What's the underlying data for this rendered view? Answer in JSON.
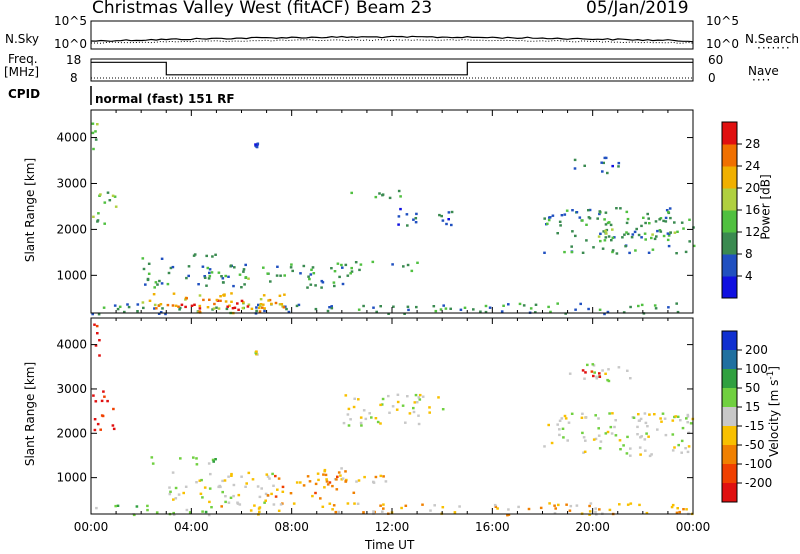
{
  "header": {
    "station": "Christmas Valley West (fitACF)",
    "beam": "Beam 23",
    "date": "05/Jan/2019"
  },
  "side_labels": {
    "nsky": "N.Sky",
    "nsearch": "N.Search",
    "freq_line1": "Freq.",
    "freq_line2": "[MHz]",
    "nave": "Nave",
    "cpid": "CPID"
  },
  "cpid_text": "normal (fast) 151 RF",
  "chart_data": [
    {
      "type": "line",
      "name": "noise",
      "left_axis": {
        "ticks": [
          "10^5",
          "10^0"
        ]
      },
      "right_axis": {
        "ticks": [
          "10^5",
          "10^0"
        ]
      },
      "series": [
        {
          "name": "N.Sky",
          "style": "solid"
        },
        {
          "name": "N.Search",
          "style": "dotted"
        }
      ]
    },
    {
      "type": "line",
      "name": "frequency",
      "left_axis": {
        "ticks": [
          18,
          8
        ]
      },
      "right_axis": {
        "ticks": [
          60,
          0
        ]
      },
      "series": [
        {
          "name": "Freq.",
          "style": "solid",
          "x": [
            0,
            3,
            3,
            15,
            15,
            24
          ],
          "y": [
            16.5,
            16.5,
            10.8,
            10.8,
            16.5,
            16.5
          ]
        },
        {
          "name": "Nave",
          "style": "dotted"
        }
      ]
    },
    {
      "type": "heatmap",
      "name": "power",
      "ylabel": "Slant Range [km]",
      "ylim": [
        180,
        4600
      ],
      "yticks": [
        1000,
        2000,
        3000,
        4000
      ],
      "colorbar": {
        "label": "Power [dB]",
        "ticks": [
          4,
          8,
          12,
          16,
          20,
          24,
          28
        ],
        "colors": [
          "#1010e0",
          "#2050c0",
          "#3a8a50",
          "#50c040",
          "#b0d040",
          "#f0b000",
          "#f07000",
          "#e01010"
        ]
      },
      "regions": [
        {
          "t0": 0.0,
          "t1": 1.0,
          "r0": 2100,
          "r1": 2900,
          "level": 3
        },
        {
          "t0": 0.0,
          "t1": 0.2,
          "r0": 3600,
          "r1": 4500,
          "level": 3
        },
        {
          "t0": 2.0,
          "t1": 5.0,
          "r0": 1380,
          "r1": 1520,
          "level": 2
        },
        {
          "t0": 2.0,
          "t1": 10.5,
          "r0": 750,
          "r1": 1300,
          "level": 2
        },
        {
          "t0": 4.0,
          "t1": 7.0,
          "r0": 950,
          "r1": 1100,
          "level": 3
        },
        {
          "t0": 9.5,
          "t1": 13.0,
          "r0": 1120,
          "r1": 1320,
          "level": 2
        },
        {
          "t0": 10.0,
          "t1": 12.5,
          "r0": 2700,
          "r1": 2880,
          "level": 2
        },
        {
          "t0": 12.0,
          "t1": 14.5,
          "r0": 2100,
          "r1": 2500,
          "level": 1
        },
        {
          "t0": 0.0,
          "t1": 24.0,
          "r0": 180,
          "r1": 420,
          "level": 2
        },
        {
          "t0": 2.0,
          "t1": 8.0,
          "r0": 200,
          "r1": 650,
          "level": 5
        },
        {
          "t0": 4.0,
          "t1": 7.5,
          "r0": 200,
          "r1": 500,
          "level": 6
        },
        {
          "t0": 3.0,
          "t1": 7.0,
          "r0": 300,
          "r1": 450,
          "level": 7
        },
        {
          "t0": 18.0,
          "t1": 24.0,
          "r0": 1500,
          "r1": 2500,
          "level": 2
        },
        {
          "t0": 20.0,
          "t1": 23.5,
          "r0": 1800,
          "r1": 2300,
          "level": 3
        },
        {
          "t0": 19.0,
          "t1": 21.0,
          "r0": 3250,
          "r1": 3600,
          "level": 1
        },
        {
          "t0": 6.5,
          "t1": 6.6,
          "r0": 3800,
          "r1": 3900,
          "level": 1
        }
      ]
    },
    {
      "type": "heatmap",
      "name": "velocity",
      "xlabel": "Time UT",
      "ylabel": "Slant Range [km]",
      "xlim": [
        0,
        24
      ],
      "xticks": [
        "00:00",
        "04:00",
        "08:00",
        "12:00",
        "16:00",
        "20:00",
        "00:00"
      ],
      "ylim": [
        180,
        4600
      ],
      "yticks": [
        1000,
        2000,
        3000,
        4000
      ],
      "colorbar": {
        "label": "Velocity [m s",
        "label_sup": "-1",
        "label_end": "]",
        "ticks": [
          200,
          100,
          50,
          15,
          -15,
          -50,
          -100,
          -200
        ],
        "colors": [
          "#1030d0",
          "#2070a0",
          "#30a040",
          "#70d040",
          "#c8c8c8",
          "#f8c000",
          "#f08000",
          "#f04000",
          "#e01010"
        ]
      },
      "regions": [
        {
          "t0": 0.0,
          "t1": 1.0,
          "r0": 2100,
          "r1": 3000,
          "level": 8
        },
        {
          "t0": 0.0,
          "t1": 0.3,
          "r0": 3700,
          "r1": 4500,
          "level": 8
        },
        {
          "t0": 2.0,
          "t1": 5.0,
          "r0": 1320,
          "r1": 1520,
          "level": 3
        },
        {
          "t0": 3.0,
          "t1": 7.5,
          "r0": 450,
          "r1": 1150,
          "level": 4
        },
        {
          "t0": 7.0,
          "t1": 10.5,
          "r0": 550,
          "r1": 1150,
          "level": 6
        },
        {
          "t0": 9.0,
          "t1": 12.0,
          "r0": 900,
          "r1": 1250,
          "level": 5
        },
        {
          "t0": 10.0,
          "t1": 14.0,
          "r0": 2200,
          "r1": 2900,
          "level": 4
        },
        {
          "t0": 0.0,
          "t1": 5.0,
          "r0": 180,
          "r1": 400,
          "level": 3
        },
        {
          "t0": 5.0,
          "t1": 24.0,
          "r0": 180,
          "r1": 450,
          "level": 5
        },
        {
          "t0": 18.0,
          "t1": 24.0,
          "r0": 1500,
          "r1": 2500,
          "level": 4
        },
        {
          "t0": 19.0,
          "t1": 21.5,
          "r0": 3200,
          "r1": 3600,
          "level": 4
        },
        {
          "t0": 19.5,
          "t1": 20.5,
          "r0": 3300,
          "r1": 3500,
          "level": 8
        },
        {
          "t0": 6.5,
          "t1": 6.6,
          "r0": 3800,
          "r1": 3900,
          "level": 4
        }
      ]
    }
  ]
}
